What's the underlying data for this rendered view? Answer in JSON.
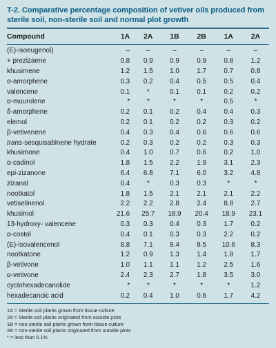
{
  "title_line1": "T-2. Comparative percentage composition of vetiver oils produced from",
  "title_line2": "sterile soil, non-sterile soil and normal plot growth",
  "columns": [
    "Compound",
    "1A",
    "2A",
    "1B",
    "2B",
    "1A",
    "2A"
  ],
  "rows": [
    {
      "name": "(E)-isoeugenol)",
      "v": [
        "–",
        "–",
        "–",
        "–",
        "–",
        "–"
      ]
    },
    {
      "name": "+ prezizaene",
      "v": [
        "0.8",
        "0.9",
        "0.9",
        "0.9",
        "0.8",
        "1.2"
      ]
    },
    {
      "name": "khusimene",
      "v": [
        "1.2",
        "1.5",
        "1.0",
        "1.7",
        "0.7",
        "0.8"
      ]
    },
    {
      "name": "α-amorphene",
      "v": [
        "0.3",
        "0.2",
        "0.4",
        "0.5",
        "0.5",
        "0.4"
      ]
    },
    {
      "name": "valencene",
      "v": [
        "0.1",
        "*",
        "0.1",
        "0.1",
        "0.2",
        "0.2"
      ]
    },
    {
      "name": "α-muurolene",
      "v": [
        "*",
        "*",
        "*",
        "*",
        "0.5",
        "*"
      ]
    },
    {
      "name": "δ-amorphene",
      "v": [
        "0.2",
        "0.1",
        "0.2",
        "0.4",
        "0.4",
        "0.3"
      ]
    },
    {
      "name": "elemol",
      "v": [
        "0.2",
        "0.1",
        "0.2",
        "0.2",
        "0.3",
        "0.2"
      ]
    },
    {
      "name": "β-vetivenene",
      "v": [
        "0.4",
        "0.3",
        "0.4",
        "0.6",
        "0.6",
        "0.6"
      ]
    },
    {
      "name_it": "trans",
      "name": "-sesquisabinene hydrate",
      "v": [
        "0.2",
        "0.3",
        "0.2",
        "0.2",
        "0.3",
        "0.3"
      ]
    },
    {
      "name": "khusimone",
      "v": [
        "0.4",
        "1.0",
        "0.7",
        "0.6",
        "0.2",
        "1.0"
      ]
    },
    {
      "name": "α-cadinol",
      "v": [
        "1.8",
        "1.5",
        "2.2",
        "1.9",
        "3.1",
        "2.3"
      ]
    },
    {
      "name": "epi-zizanone",
      "v": [
        "6.4",
        "6.8",
        "7.1",
        "6.0",
        "3.2",
        "4.8"
      ]
    },
    {
      "name": "zizanal",
      "v": [
        "0.4",
        "*",
        "0.3",
        "0.3",
        "*",
        "*"
      ]
    },
    {
      "name": "nootkatol",
      "v": [
        "1.8",
        "1.5",
        "2.1",
        "2.1",
        "2.1",
        "2.2"
      ]
    },
    {
      "name": "vetiselinenol",
      "v": [
        "2.2",
        "2.2",
        "2.8",
        "2.4",
        "8.8",
        "2.7"
      ]
    },
    {
      "name": "khusimol",
      "v": [
        "21.6",
        "25.7",
        "18.9",
        "20.4",
        "18.9",
        "23.1"
      ]
    },
    {
      "name": "13-hydroxy- valencene",
      "v": [
        "0.3",
        "0.3",
        "0.4",
        "0.3",
        "1.7",
        "0.2"
      ]
    },
    {
      "name": "α-costol",
      "v": [
        "0.4",
        "0.1",
        "0.3",
        "0.3",
        "2.2",
        "0.2"
      ]
    },
    {
      "name": "(E)-isovalencenol",
      "v": [
        "8.8",
        "7.1",
        "8.4",
        "8.5",
        "10.6",
        "8.3"
      ]
    },
    {
      "name": "nootkatone",
      "v": [
        "1.2",
        "0.9",
        "1.3",
        "1.4",
        "1.8",
        "1.7"
      ]
    },
    {
      "name": "β-vetivone",
      "v": [
        "1.0",
        "1.1",
        "1.1",
        "1.2",
        "2.5",
        "1.6"
      ]
    },
    {
      "name": "α-vetivone",
      "v": [
        "2.4",
        "2.3",
        "2.7",
        "1.8",
        "3.5",
        "3.0"
      ]
    },
    {
      "name": "cyclohexadecanolide",
      "v": [
        "*",
        "*",
        "*",
        "*",
        "*",
        "1.2"
      ]
    },
    {
      "name": "hexadecanoic acid",
      "v": [
        "0.2",
        "0.4",
        "1.0",
        "0.6",
        "1.7",
        "4.2"
      ]
    }
  ],
  "notes": [
    "1A = Sterile soil plants grown from tissue culture",
    "2A = Sterile soil plants originated from outside plots",
    "1B = non-sterile soil plants grown from tissue culture",
    "2B = non-sterile soil plants originated from outside plots",
    "* = less than 0.1%"
  ]
}
